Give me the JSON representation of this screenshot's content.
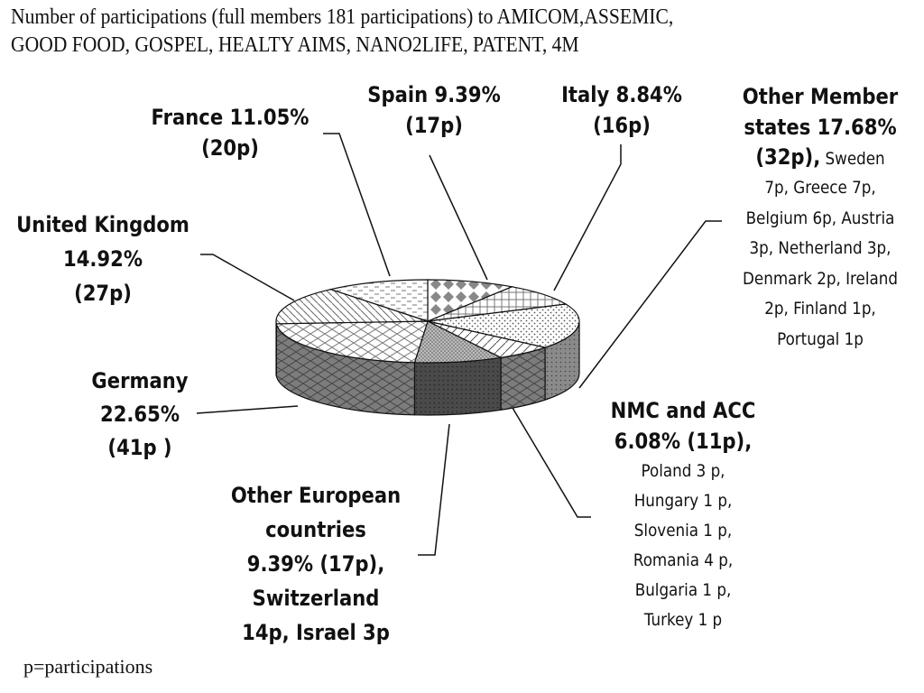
{
  "title_lines": [
    "Number of participations (full members 181 participations) to AMICOM,ASSEMIC,",
    "GOOD FOOD, GOSPEL, HEALTY AIMS, NANO2LIFE, PATENT, 4M"
  ],
  "footnote": "p=participations",
  "labels": {
    "france": [
      "France 11.05%",
      "(20p)"
    ],
    "spain": [
      "Spain 9.39%",
      "(17p)"
    ],
    "italy": [
      "Italy 8.84%",
      "(16p)"
    ],
    "other_member": {
      "bold": [
        "Other Member",
        "states 17.68%",
        "(32p),"
      ],
      "detail_first": " Sweden",
      "detail": [
        "7p, Greece 7p,",
        "Belgium 6p, Austria",
        "3p, Netherland 3p,",
        "Denmark 2p, Ireland",
        "2p, Finland 1p,",
        "Portugal 1p"
      ]
    },
    "uk": [
      "United Kingdom",
      "14.92%",
      "(27p)"
    ],
    "germany": [
      "Germany",
      "22.65%",
      "(41p )"
    ],
    "nmc": {
      "bold": [
        "NMC and ACC",
        "6.08% (11p),"
      ],
      "detail": [
        "Poland 3 p,",
        "Hungary 1 p,",
        "Slovenia 1 p,",
        "Romania 4 p,",
        "Bulgaria 1 p,",
        "Turkey 1 p"
      ]
    },
    "other_european": [
      "Other European",
      "countries",
      "9.39% (17p),",
      "Switzerland",
      "14p, Israel 3p"
    ]
  },
  "chart_data": {
    "type": "pie",
    "style": "3d-exploded-textured",
    "title": "Number of participations (full members 181 participations) to AMICOM,ASSEMIC, GOOD FOOD, GOSPEL, HEALTY AIMS, NANO2LIFE, PATENT, 4M",
    "total": 181,
    "unit": "participations",
    "slices": [
      {
        "name": "Spain",
        "value": 17,
        "percent": 9.39
      },
      {
        "name": "Italy",
        "value": 16,
        "percent": 8.84
      },
      {
        "name": "Other Member states",
        "value": 32,
        "percent": 17.68
      },
      {
        "name": "NMC and ACC",
        "value": 11,
        "percent": 6.08
      },
      {
        "name": "Other European countries",
        "value": 17,
        "percent": 9.39
      },
      {
        "name": "Germany",
        "value": 41,
        "percent": 22.65
      },
      {
        "name": "United Kingdom",
        "value": 27,
        "percent": 14.92
      },
      {
        "name": "France",
        "value": 20,
        "percent": 11.05
      }
    ]
  }
}
